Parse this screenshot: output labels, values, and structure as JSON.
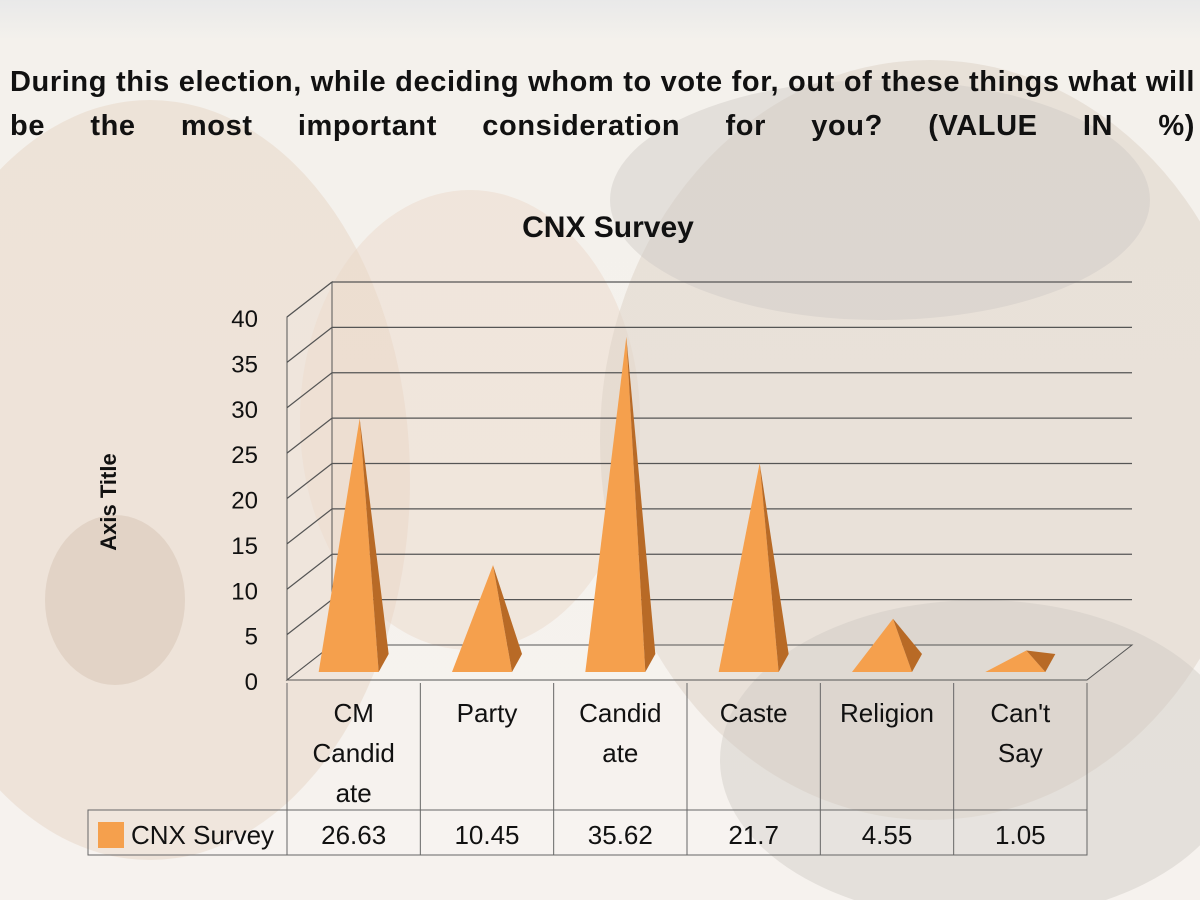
{
  "slide": {
    "question": "During this election, while deciding whom to vote for, out of these things what will be the most important consideration for you? (VALUE IN %)"
  },
  "chart_data": {
    "type": "bar",
    "style": "3d-pyramid",
    "title": "CNX Survey",
    "xlabel": "",
    "ylabel": "Axis Title",
    "ylim": [
      0,
      40
    ],
    "yticks": [
      0,
      5,
      10,
      15,
      20,
      25,
      30,
      35,
      40
    ],
    "grid": true,
    "categories": [
      "CM Candidate",
      "Party",
      "Candidate",
      "Caste",
      "Religion",
      "Can't Say"
    ],
    "category_label_lines": [
      [
        "CM",
        "Candid",
        "ate"
      ],
      [
        "Party"
      ],
      [
        "Candid",
        "ate"
      ],
      [
        "Caste"
      ],
      [
        "Religion"
      ],
      [
        "Can't",
        "Say"
      ]
    ],
    "series": [
      {
        "name": "CNX Survey",
        "values": [
          26.63,
          10.45,
          35.62,
          21.7,
          4.55,
          1.05
        ],
        "color": "#f5a04d"
      }
    ],
    "data_table": {
      "series_label": "CNX Survey",
      "values": [
        "26.63",
        "10.45",
        "35.62",
        "21.7",
        "4.55",
        "1.05"
      ]
    }
  }
}
